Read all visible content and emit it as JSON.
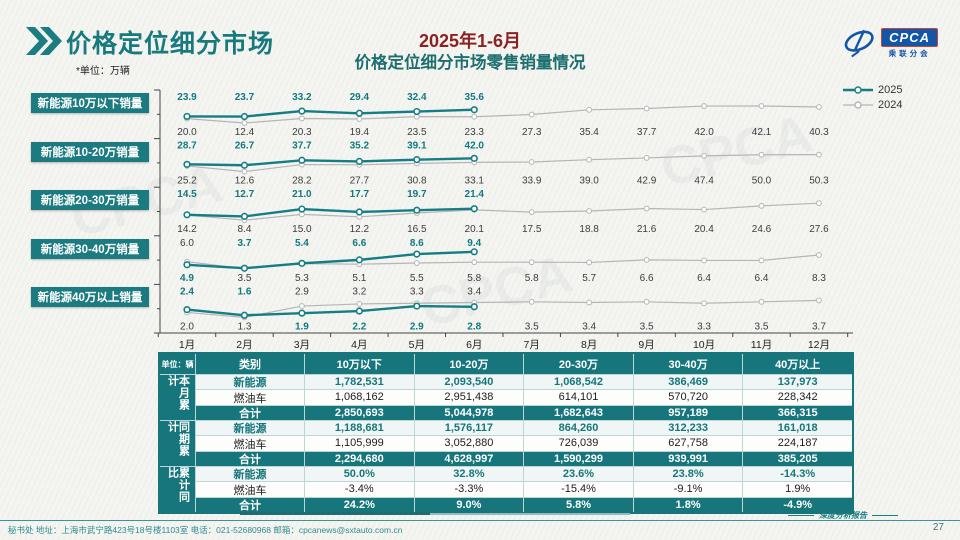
{
  "header": {
    "page_title": "价格定位细分市场",
    "chart_title_line1": "2025年1-6月",
    "chart_title_line2": "价格定位细分市场零售销量情况",
    "logo": {
      "name": "CPCA",
      "sub": "乘联分会"
    }
  },
  "chart": {
    "unit_note": "*单位：万辆",
    "months": [
      "1月",
      "2月",
      "3月",
      "4月",
      "5月",
      "6月",
      "7月",
      "8月",
      "9月",
      "10月",
      "11月",
      "12月"
    ],
    "legend": [
      {
        "label": "2025",
        "color": "#147d85"
      },
      {
        "label": "2024",
        "color": "#b5b5b5"
      }
    ],
    "colors": {
      "series_2025": "#147d85",
      "series_2024": "#b5b5b5",
      "label_2025": "#107a80",
      "label_2024": "#3c3c3c"
    }
  },
  "chart_data": [
    {
      "type": "line",
      "title": "新能源10万以下销量",
      "series": [
        {
          "name": "2025",
          "values": [
            23.9,
            23.7,
            33.2,
            29.4,
            32.4,
            35.6
          ]
        },
        {
          "name": "2024",
          "values": [
            20.0,
            12.4,
            20.3,
            19.4,
            23.5,
            23.3,
            27.3,
            35.4,
            37.7,
            42.0,
            42.1,
            40.3
          ]
        }
      ]
    },
    {
      "type": "line",
      "title": "新能源10-20万销量",
      "series": [
        {
          "name": "2025",
          "values": [
            28.7,
            26.7,
            37.7,
            35.2,
            39.1,
            42.0
          ]
        },
        {
          "name": "2024",
          "values": [
            25.2,
            12.6,
            28.2,
            27.7,
            30.8,
            33.1,
            33.9,
            39.0,
            42.9,
            47.4,
            50.0,
            50.3
          ]
        }
      ]
    },
    {
      "type": "line",
      "title": "新能源20-30万销量",
      "series": [
        {
          "name": "2025",
          "values": [
            14.5,
            12.7,
            21.0,
            17.7,
            19.7,
            21.4
          ]
        },
        {
          "name": "2024",
          "values": [
            14.2,
            8.4,
            15.0,
            12.2,
            16.5,
            20.1,
            17.5,
            18.8,
            21.6,
            20.4,
            24.6,
            27.6
          ]
        }
      ]
    },
    {
      "type": "line",
      "title": "新能源30-40万销量",
      "series": [
        {
          "name": "2025",
          "values": [
            4.9,
            3.7,
            5.4,
            6.6,
            8.6,
            9.4
          ]
        },
        {
          "name": "2024",
          "values": [
            6.0,
            3.5,
            5.3,
            5.1,
            5.5,
            5.8,
            5.8,
            5.7,
            6.6,
            6.4,
            6.4,
            8.3
          ]
        }
      ]
    },
    {
      "type": "line",
      "title": "新能源40万以上销量",
      "series": [
        {
          "name": "2025",
          "values": [
            2.4,
            1.6,
            1.9,
            2.2,
            2.9,
            2.8
          ]
        },
        {
          "name": "2024",
          "values": [
            2.0,
            1.3,
            2.9,
            3.2,
            3.3,
            3.4,
            3.5,
            3.4,
            3.5,
            3.3,
            3.5,
            3.7
          ]
        }
      ]
    }
  ],
  "table": {
    "unit_label": "单位：辆",
    "col_headers": [
      "类别",
      "10万以下",
      "10-20万",
      "20-30万",
      "30-40万",
      "40万以上"
    ],
    "groups": [
      {
        "label": "本月累计",
        "rows": [
          {
            "style": "nev",
            "label": "新能源",
            "values": [
              "1,782,531",
              "2,093,540",
              "1,068,542",
              "386,469",
              "137,973"
            ]
          },
          {
            "style": "ice",
            "label": "燃油车",
            "values": [
              "1,068,162",
              "2,951,438",
              "614,101",
              "570,720",
              "228,342"
            ]
          },
          {
            "style": "total",
            "label": "合计",
            "values": [
              "2,850,693",
              "5,044,978",
              "1,682,643",
              "957,189",
              "366,315"
            ]
          }
        ]
      },
      {
        "label": "同期累计",
        "rows": [
          {
            "style": "nev",
            "label": "新能源",
            "values": [
              "1,188,681",
              "1,576,117",
              "864,260",
              "312,233",
              "161,018"
            ]
          },
          {
            "style": "ice",
            "label": "燃油车",
            "values": [
              "1,105,999",
              "3,052,880",
              "726,039",
              "627,758",
              "224,187"
            ]
          },
          {
            "style": "total",
            "label": "合计",
            "values": [
              "2,294,680",
              "4,628,997",
              "1,590,299",
              "939,991",
              "385,205"
            ]
          }
        ]
      },
      {
        "label": "累计同比",
        "rows": [
          {
            "style": "nev",
            "label": "新能源",
            "values": [
              "50.0%",
              "32.8%",
              "23.6%",
              "23.8%",
              "-14.3%"
            ]
          },
          {
            "style": "ice",
            "label": "燃油车",
            "values": [
              "-3.4%",
              "-3.3%",
              "-15.4%",
              "-9.1%",
              "1.9%"
            ]
          },
          {
            "style": "total",
            "label": "合计",
            "values": [
              "24.2%",
              "9.0%",
              "5.8%",
              "1.8%",
              "-4.9%"
            ]
          }
        ]
      }
    ]
  },
  "footer": {
    "report_tag": "深度分析报告",
    "contact": "秘书处  地址：上海市武宁路423号18号楼1103室  电话：021-52680968   邮箱：cpcanews@sxtauto.com.cn",
    "page_number": "27"
  }
}
